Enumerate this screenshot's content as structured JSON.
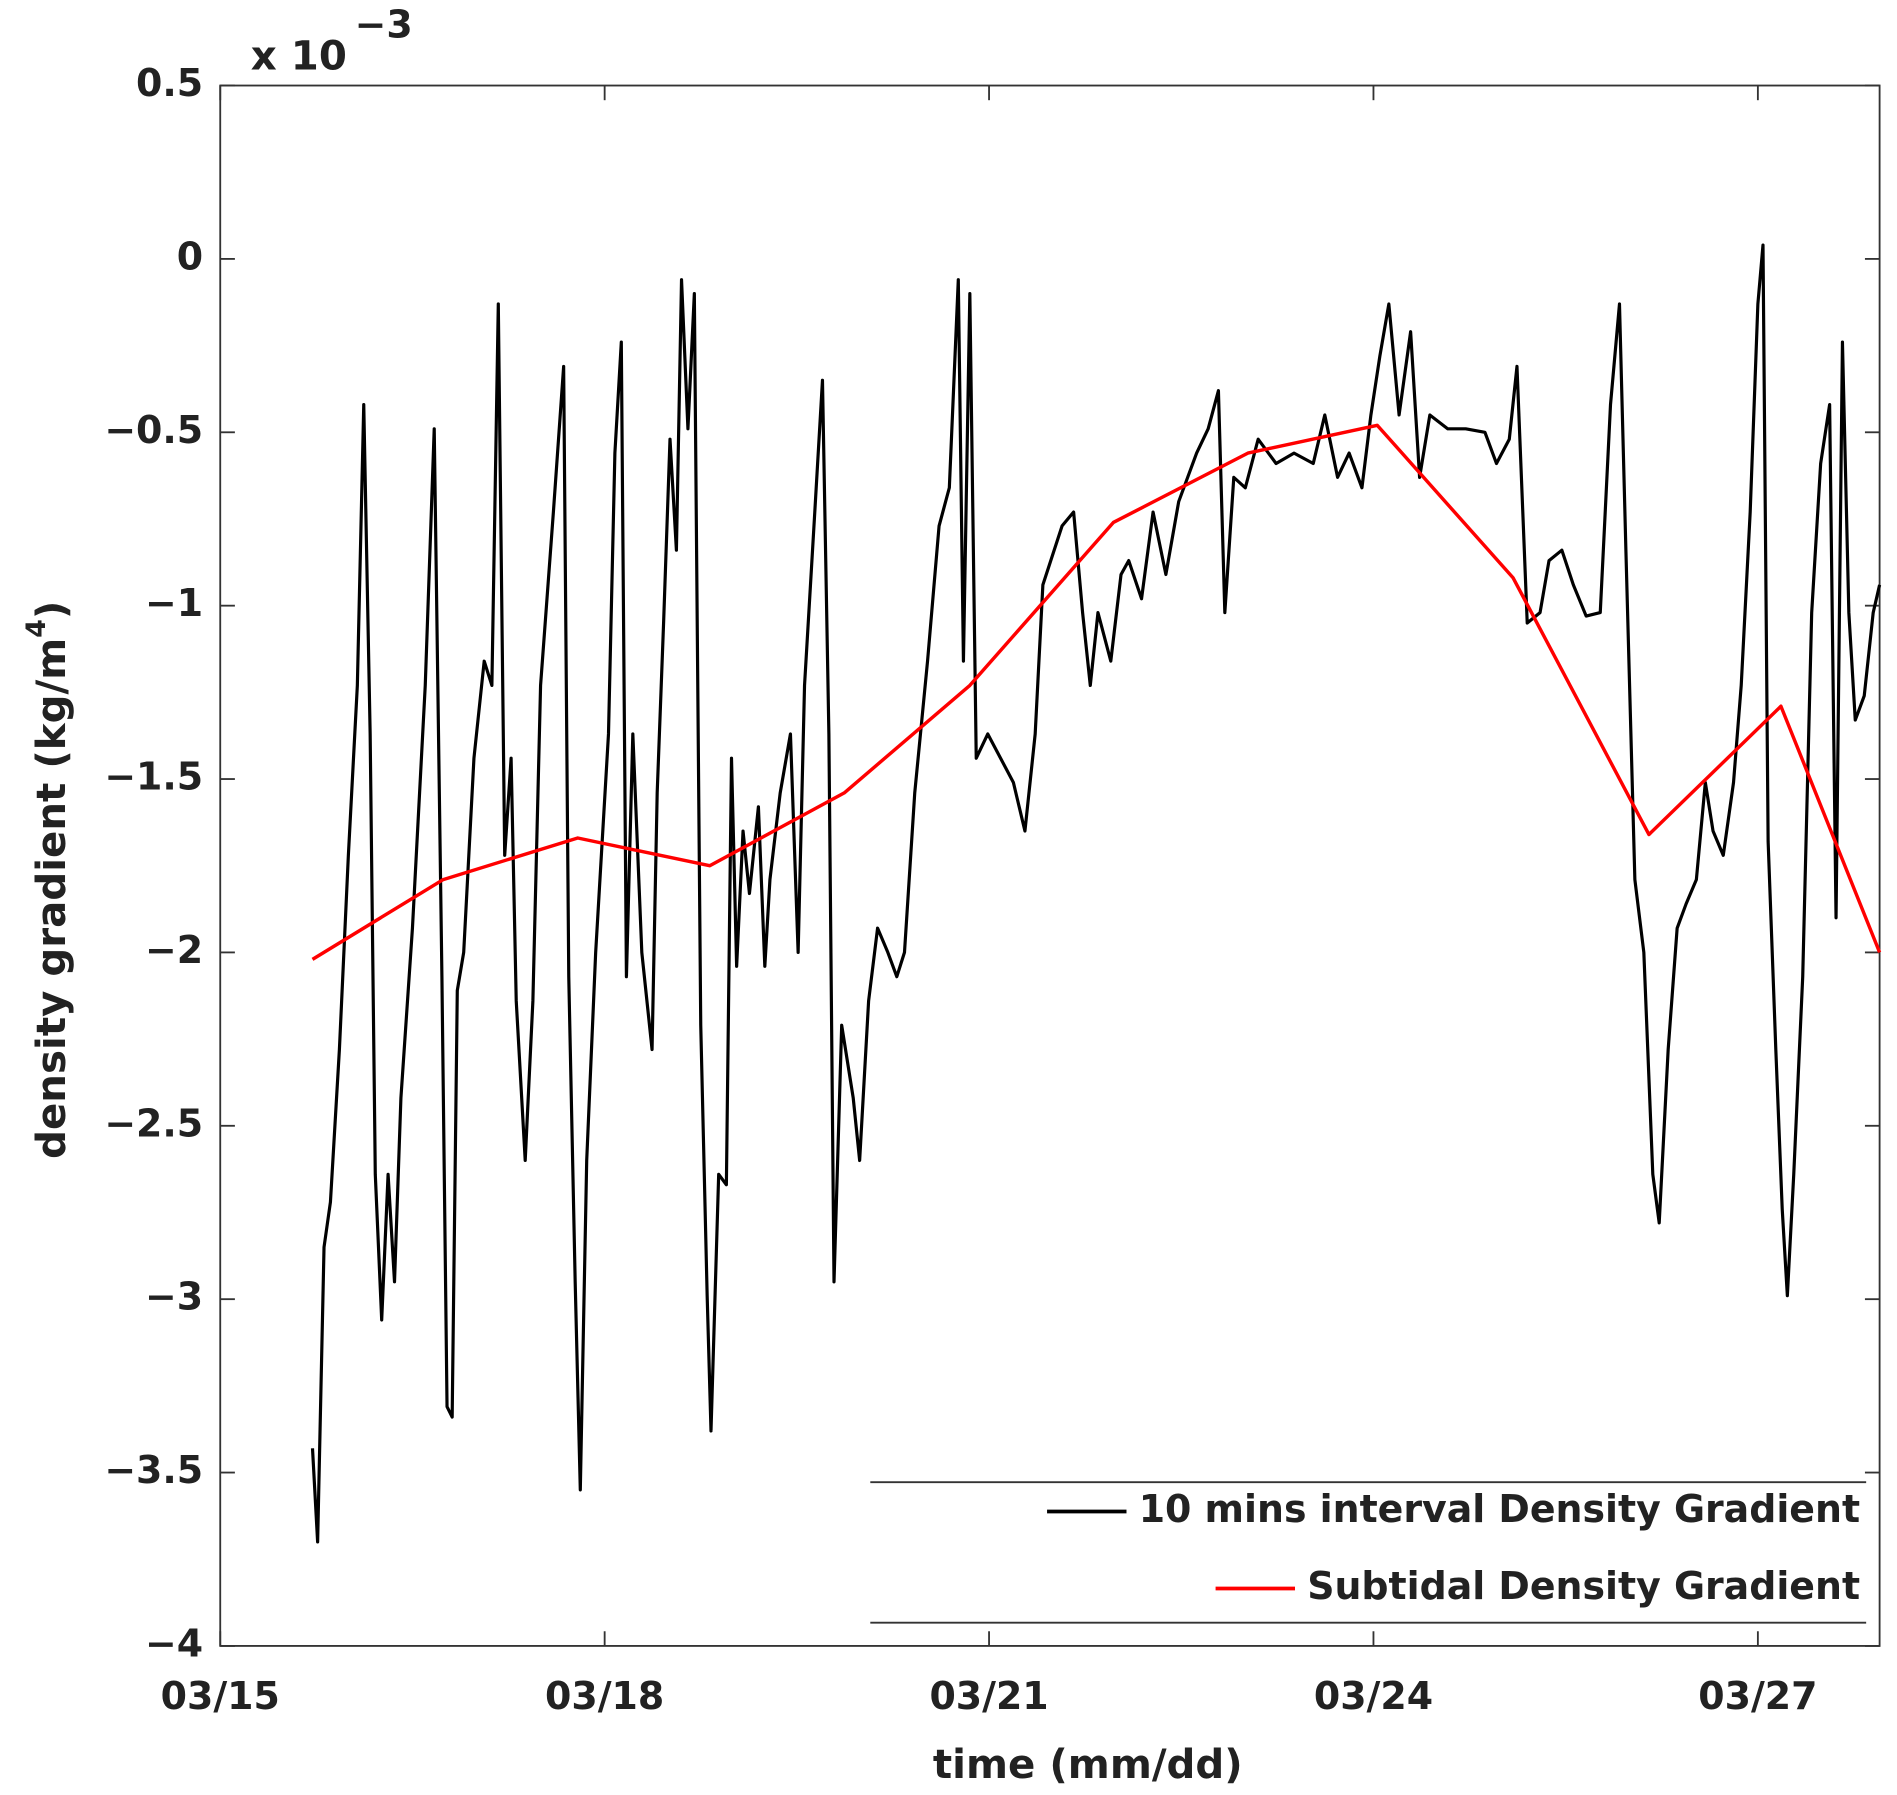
{
  "chart_data": {
    "type": "line",
    "xlabel": "time (mm/dd)",
    "ylabel": [
      "density gradient (kg/m",
      "4",
      ")"
    ],
    "axis_multiplier": {
      "base": "x 10",
      "exponent": "−3"
    },
    "xlim": [
      15,
      27.95
    ],
    "ylim": [
      -4,
      0.5
    ],
    "xticks": [
      {
        "value": 15,
        "label": "03/15"
      },
      {
        "value": 18,
        "label": "03/18"
      },
      {
        "value": 21,
        "label": "03/21"
      },
      {
        "value": 24,
        "label": "03/24"
      },
      {
        "value": 27,
        "label": "03/27"
      }
    ],
    "yticks": [
      {
        "value": -4,
        "label": "−4"
      },
      {
        "value": -3.5,
        "label": "−3.5"
      },
      {
        "value": -3,
        "label": "−3"
      },
      {
        "value": -2.5,
        "label": "−2.5"
      },
      {
        "value": -2,
        "label": "−2"
      },
      {
        "value": -1.5,
        "label": "−1.5"
      },
      {
        "value": -1,
        "label": "−1"
      },
      {
        "value": -0.5,
        "label": "−0.5"
      },
      0,
      0.5
    ],
    "legend": "lower right",
    "series": [
      {
        "name": "10 mins interval Density Gradient",
        "color": "#000000",
        "x": [
          15.72,
          15.76,
          15.81,
          15.86,
          15.93,
          16.0,
          16.07,
          16.12,
          16.17,
          16.21,
          16.26,
          16.31,
          16.36,
          16.41,
          16.5,
          16.6,
          16.67,
          16.73,
          16.77,
          16.81,
          16.85,
          16.9,
          16.98,
          17.06,
          17.12,
          17.17,
          17.22,
          17.27,
          17.31,
          17.38,
          17.44,
          17.5,
          17.6,
          17.68,
          17.72,
          17.77,
          17.81,
          17.86,
          17.93,
          18.03,
          18.08,
          18.13,
          18.17,
          18.22,
          18.29,
          18.37,
          18.41,
          18.46,
          18.51,
          18.56,
          18.6,
          18.65,
          18.7,
          18.75,
          18.8,
          18.83,
          18.89,
          18.95,
          18.99,
          19.03,
          19.08,
          19.13,
          19.2,
          19.25,
          19.29,
          19.37,
          19.45,
          19.51,
          19.56,
          19.64,
          19.7,
          19.75,
          19.79,
          19.85,
          19.94,
          19.99,
          20.06,
          20.13,
          20.21,
          20.28,
          20.34,
          20.42,
          20.52,
          20.61,
          20.69,
          20.76,
          20.8,
          20.85,
          20.9,
          20.99,
          21.09,
          21.19,
          21.28,
          21.36,
          21.42,
          21.57,
          21.66,
          21.73,
          21.79,
          21.85,
          21.95,
          22.03,
          22.09,
          22.19,
          22.28,
          22.38,
          22.48,
          22.62,
          22.71,
          22.79,
          22.84,
          22.91,
          23.0,
          23.1,
          23.24,
          23.38,
          23.53,
          23.62,
          23.72,
          23.81,
          23.91,
          23.98,
          24.05,
          24.12,
          24.2,
          24.29,
          24.36,
          24.44,
          24.58,
          24.72,
          24.87,
          24.96,
          25.06,
          25.12,
          25.2,
          25.3,
          25.37,
          25.47,
          25.56,
          25.66,
          25.77,
          25.85,
          25.92,
          25.97,
          26.04,
          26.11,
          26.18,
          26.23,
          26.3,
          26.37,
          26.44,
          26.52,
          26.59,
          26.65,
          26.73,
          26.81,
          26.87,
          26.94,
          27.0,
          27.04,
          27.08,
          27.14,
          27.19,
          27.23,
          27.28,
          27.35,
          27.42,
          27.49,
          27.56,
          27.61,
          27.66,
          27.71,
          27.76,
          27.83,
          27.9,
          27.95
        ],
        "values": [
          -3.43,
          -3.7,
          -2.85,
          -2.72,
          -2.28,
          -1.72,
          -1.23,
          -0.42,
          -1.37,
          -2.64,
          -3.06,
          -2.64,
          -2.95,
          -2.42,
          -1.93,
          -1.23,
          -0.49,
          -2.07,
          -3.31,
          -3.34,
          -2.11,
          -2.0,
          -1.44,
          -1.16,
          -1.23,
          -0.13,
          -1.72,
          -1.44,
          -2.14,
          -2.6,
          -2.14,
          -1.23,
          -0.73,
          -0.31,
          -2.07,
          -2.95,
          -3.55,
          -2.6,
          -2.0,
          -1.37,
          -0.56,
          -0.24,
          -2.07,
          -1.37,
          -2.0,
          -2.28,
          -1.54,
          -1.05,
          -0.52,
          -0.84,
          -0.06,
          -0.49,
          -0.1,
          -2.21,
          -2.99,
          -3.38,
          -2.64,
          -2.67,
          -1.44,
          -2.04,
          -1.65,
          -1.83,
          -1.58,
          -2.04,
          -1.79,
          -1.54,
          -1.37,
          -2.0,
          -1.23,
          -0.73,
          -0.35,
          -1.37,
          -2.95,
          -2.21,
          -2.42,
          -2.6,
          -2.14,
          -1.93,
          -2.0,
          -2.07,
          -2.0,
          -1.54,
          -1.16,
          -0.77,
          -0.66,
          -0.06,
          -1.16,
          -0.1,
          -1.44,
          -1.37,
          -1.44,
          -1.51,
          -1.65,
          -1.37,
          -0.94,
          -0.77,
          -0.73,
          -1.02,
          -1.23,
          -1.02,
          -1.16,
          -0.91,
          -0.87,
          -0.98,
          -0.73,
          -0.91,
          -0.7,
          -0.56,
          -0.49,
          -0.38,
          -1.02,
          -0.63,
          -0.66,
          -0.52,
          -0.59,
          -0.56,
          -0.59,
          -0.45,
          -0.63,
          -0.56,
          -0.66,
          -0.45,
          -0.28,
          -0.13,
          -0.45,
          -0.21,
          -0.63,
          -0.45,
          -0.49,
          -0.49,
          -0.5,
          -0.59,
          -0.52,
          -0.31,
          -1.05,
          -1.02,
          -0.87,
          -0.84,
          -0.94,
          -1.03,
          -1.02,
          -0.42,
          -0.13,
          -0.84,
          -1.79,
          -2.0,
          -2.64,
          -2.78,
          -2.28,
          -1.93,
          -1.86,
          -1.79,
          -1.51,
          -1.65,
          -1.72,
          -1.51,
          -1.23,
          -0.73,
          -0.13,
          0.04,
          -1.68,
          -2.28,
          -2.74,
          -2.99,
          -2.64,
          -2.07,
          -1.02,
          -0.59,
          -0.42,
          -1.9,
          -0.24,
          -1.02,
          -1.33,
          -1.26,
          -1.02,
          -0.94
        ]
      },
      {
        "name": "Subtidal Density Gradient",
        "color": "#ff0000",
        "x": [
          15.72,
          16.74,
          17.79,
          18.82,
          19.87,
          20.85,
          21.97,
          23.02,
          24.03,
          25.09,
          26.15,
          27.18,
          27.95
        ],
        "values": [
          -2.02,
          -1.79,
          -1.67,
          -1.75,
          -1.54,
          -1.23,
          -0.76,
          -0.56,
          -0.48,
          -0.92,
          -1.66,
          -1.29,
          -2.0
        ]
      }
    ]
  }
}
